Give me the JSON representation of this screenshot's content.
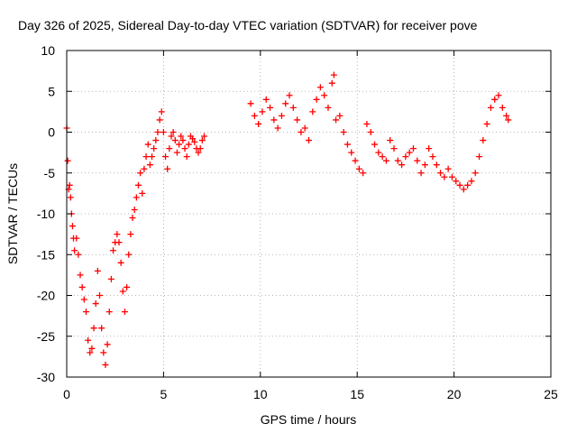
{
  "chart_data": {
    "type": "scatter",
    "title": "Day 326 of 2025, Sidereal Day-to-day VTEC variation (SDTVAR) for receiver pove",
    "xlabel": "GPS time / hours",
    "ylabel": "SDTVAR / TECUs",
    "xlim": [
      0,
      25
    ],
    "ylim": [
      -30,
      10
    ],
    "xticks": [
      0,
      5,
      10,
      15,
      20,
      25
    ],
    "yticks": [
      -30,
      -25,
      -20,
      -15,
      -10,
      -5,
      0,
      5,
      10
    ],
    "grid": true,
    "marker": "+",
    "color": "#ff0000",
    "series": [
      {
        "name": "SDTVAR",
        "x": [
          0.0,
          0.05,
          0.1,
          0.15,
          0.2,
          0.25,
          0.3,
          0.35,
          0.4,
          0.5,
          0.6,
          0.7,
          0.8,
          0.9,
          1.0,
          1.1,
          1.2,
          1.3,
          1.4,
          1.5,
          1.6,
          1.7,
          1.8,
          1.9,
          2.0,
          2.1,
          2.2,
          2.3,
          2.4,
          2.5,
          2.6,
          2.7,
          2.8,
          2.9,
          3.0,
          3.1,
          3.2,
          3.3,
          3.4,
          3.5,
          3.6,
          3.7,
          3.8,
          3.9,
          4.0,
          4.1,
          4.2,
          4.3,
          4.4,
          4.5,
          4.6,
          4.7,
          4.8,
          4.9,
          5.0,
          5.1,
          5.2,
          5.3,
          5.4,
          5.5,
          5.6,
          5.7,
          5.8,
          5.9,
          6.0,
          6.1,
          6.2,
          6.3,
          6.4,
          6.5,
          6.6,
          6.7,
          6.8,
          6.9,
          7.0,
          7.1,
          9.5,
          9.7,
          9.9,
          10.1,
          10.3,
          10.5,
          10.7,
          10.9,
          11.1,
          11.3,
          11.5,
          11.7,
          11.9,
          12.1,
          12.3,
          12.5,
          12.7,
          12.9,
          13.1,
          13.3,
          13.5,
          13.7,
          13.8,
          13.9,
          14.1,
          14.3,
          14.5,
          14.7,
          14.9,
          15.1,
          15.3,
          15.5,
          15.7,
          15.9,
          16.1,
          16.3,
          16.5,
          16.7,
          16.9,
          17.1,
          17.3,
          17.5,
          17.7,
          17.9,
          18.1,
          18.3,
          18.5,
          18.7,
          18.9,
          19.1,
          19.3,
          19.5,
          19.7,
          19.9,
          20.1,
          20.3,
          20.5,
          20.7,
          20.9,
          21.1,
          21.3,
          21.5,
          21.7,
          21.9,
          22.1,
          22.3,
          22.5,
          22.7,
          22.8
        ],
        "y": [
          0.5,
          -3.5,
          -7.0,
          -6.5,
          -8.0,
          -10.0,
          -11.5,
          -13.0,
          -14.5,
          -13.0,
          -15.0,
          -17.5,
          -19.0,
          -20.5,
          -22.0,
          -25.5,
          -27.0,
          -26.5,
          -24.0,
          -21.0,
          -17.0,
          -20.0,
          -24.0,
          -27.0,
          -28.5,
          -26.0,
          -22.0,
          -18.0,
          -14.5,
          -13.5,
          -12.5,
          -13.5,
          -16.0,
          -19.5,
          -22.0,
          -19.0,
          -15.0,
          -12.5,
          -10.5,
          -9.5,
          -8.0,
          -6.5,
          -5.0,
          -7.5,
          -4.5,
          -3.0,
          -1.5,
          -4.0,
          -3.0,
          -2.0,
          -1.0,
          0.0,
          1.5,
          2.5,
          0.0,
          -3.0,
          -4.5,
          -2.0,
          -0.5,
          0.0,
          -1.0,
          -2.5,
          -1.5,
          -0.5,
          -1.0,
          -2.0,
          -3.0,
          -1.5,
          -0.5,
          -0.8,
          -1.2,
          -2.0,
          -2.5,
          -2.0,
          -1.0,
          -0.5,
          3.5,
          2.0,
          1.0,
          2.5,
          4.0,
          3.0,
          1.5,
          0.5,
          2.0,
          3.5,
          4.5,
          3.0,
          1.5,
          0.0,
          0.5,
          -1.0,
          2.5,
          4.0,
          5.5,
          4.5,
          3.0,
          6.0,
          7.0,
          1.5,
          2.0,
          0.0,
          -1.5,
          -2.5,
          -3.5,
          -4.5,
          -5.0,
          1.0,
          0.0,
          -1.5,
          -2.5,
          -3.0,
          -3.5,
          -1.0,
          -2.0,
          -3.5,
          -4.0,
          -3.0,
          -2.5,
          -2.0,
          -3.5,
          -5.0,
          -4.0,
          -2.0,
          -3.0,
          -4.0,
          -5.0,
          -5.5,
          -4.5,
          -5.5,
          -6.0,
          -6.5,
          -7.0,
          -6.5,
          -6.0,
          -5.0,
          -3.0,
          -1.0,
          1.0,
          3.0,
          4.0,
          4.5,
          3.0,
          2.0,
          1.5
        ]
      }
    ]
  }
}
